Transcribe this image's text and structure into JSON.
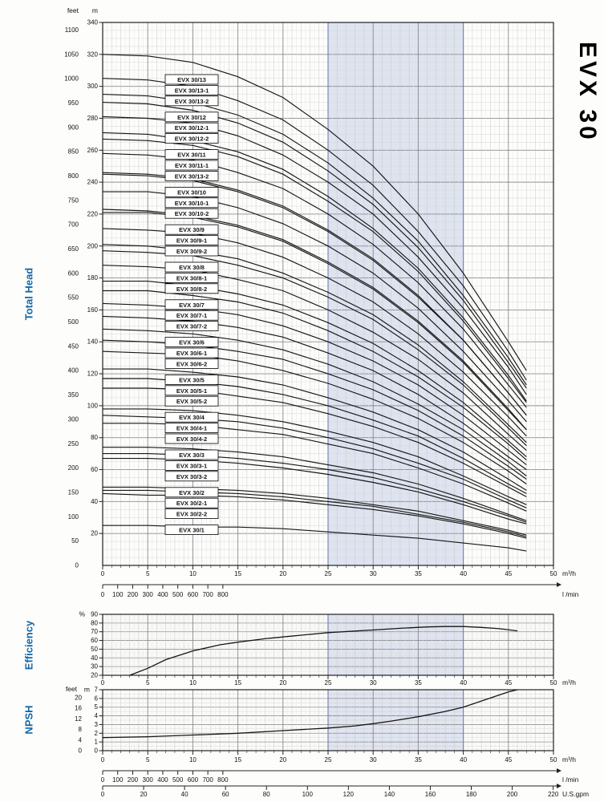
{
  "side_title": "EVX 30",
  "axis_titles": {
    "total_head": "Total Head",
    "efficiency": "Efficiency",
    "npsh": "NPSH"
  },
  "chart_data": [
    {
      "type": "line",
      "title": "Total Head vs flow - EVX 30 multistage pump family",
      "ylabel": "Total Head",
      "y_unit_left": "feet",
      "y_unit_right": "m",
      "ylim_m": [
        0,
        340
      ],
      "ylim_feet": [
        0,
        1115
      ],
      "y_ticks_feet": [
        0,
        50,
        100,
        150,
        200,
        250,
        300,
        350,
        400,
        450,
        500,
        550,
        600,
        650,
        700,
        750,
        800,
        850,
        900,
        950,
        1000,
        1050,
        1100
      ],
      "y_ticks_m": [
        20,
        40,
        60,
        80,
        100,
        120,
        140,
        160,
        180,
        200,
        220,
        240,
        260,
        280,
        300,
        320,
        340
      ],
      "xlim_m3h": [
        0,
        50
      ],
      "x_unit_rows": [
        {
          "unit": "m³/h",
          "ticks": [
            0,
            5,
            10,
            15,
            20,
            25,
            30,
            35,
            40,
            45,
            50
          ]
        },
        {
          "unit": "l /min",
          "ticks": [
            0,
            100,
            200,
            300,
            400,
            500,
            600,
            700,
            800
          ]
        }
      ],
      "duty_band_m3h": [
        25,
        40
      ],
      "x_m3h": [
        0,
        5,
        10,
        15,
        20,
        25,
        30,
        35,
        40,
        45,
        47
      ],
      "series": [
        {
          "label": "EVX 30/13",
          "values_m": [
            320,
            319,
            315,
            306,
            293,
            273,
            250,
            220,
            183,
            140,
            122
          ]
        },
        {
          "label": "EVX 30/13-1",
          "values_m": [
            305,
            304,
            300,
            291,
            279,
            260,
            238,
            209,
            175,
            134,
            116
          ]
        },
        {
          "label": "EVX 30/13-2",
          "values_m": [
            290,
            289,
            285,
            277,
            265,
            247,
            226,
            199,
            166,
            127,
            111
          ]
        },
        {
          "label": "EVX 30/12",
          "values_m": [
            295,
            294,
            290,
            282,
            270,
            252,
            230,
            203,
            169,
            130,
            113
          ]
        },
        {
          "label": "EVX 30/12-1",
          "values_m": [
            281,
            280,
            277,
            269,
            257,
            240,
            220,
            193,
            161,
            124,
            107
          ]
        },
        {
          "label": "EVX 30/12-2",
          "values_m": [
            267,
            266,
            263,
            256,
            245,
            228,
            209,
            184,
            153,
            117,
            102
          ]
        },
        {
          "label": "EVX 30/11",
          "values_m": [
            271,
            270,
            266,
            259,
            248,
            231,
            211,
            186,
            155,
            119,
            103
          ]
        },
        {
          "label": "EVX 30/11-1",
          "values_m": [
            258,
            257,
            254,
            246,
            236,
            220,
            201,
            177,
            148,
            113,
            99
          ]
        },
        {
          "label": "EVX 30/13-2",
          "values_m": [
            245,
            244,
            241,
            234,
            224,
            209,
            191,
            168,
            141,
            108,
            94
          ]
        },
        {
          "label": "EVX 30/10",
          "values_m": [
            246,
            245,
            242,
            235,
            225,
            210,
            192,
            169,
            141,
            108,
            94
          ]
        },
        {
          "label": "EVX 30/10-1",
          "values_m": [
            234,
            234,
            231,
            224,
            214,
            200,
            183,
            161,
            134,
            103,
            90
          ]
        },
        {
          "label": "EVX 30/10-2",
          "values_m": [
            223,
            222,
            219,
            213,
            204,
            190,
            174,
            153,
            128,
            98,
            85
          ]
        },
        {
          "label": "EVX 30/9",
          "values_m": [
            221,
            221,
            218,
            212,
            203,
            189,
            173,
            152,
            127,
            97,
            85
          ]
        },
        {
          "label": "EVX 30/9-1",
          "values_m": [
            211,
            210,
            208,
            202,
            193,
            180,
            165,
            145,
            121,
            93,
            81
          ]
        },
        {
          "label": "EVX 30/9-2",
          "values_m": [
            201,
            200,
            197,
            192,
            183,
            171,
            157,
            138,
            115,
            88,
            77
          ]
        },
        {
          "label": "EVX 30/8",
          "values_m": [
            197,
            196,
            194,
            188,
            180,
            168,
            154,
            135,
            113,
            86,
            75
          ]
        },
        {
          "label": "EVX 30/8-1",
          "values_m": [
            188,
            187,
            185,
            179,
            172,
            160,
            146,
            129,
            108,
            82,
            72
          ]
        },
        {
          "label": "EVX 30/8-2",
          "values_m": [
            178,
            178,
            175,
            170,
            163,
            152,
            139,
            122,
            102,
            78,
            68
          ]
        },
        {
          "label": "EVX 30/7",
          "values_m": [
            172,
            172,
            169,
            165,
            158,
            147,
            134,
            118,
            99,
            76,
            66
          ]
        },
        {
          "label": "EVX 30/7-1",
          "values_m": [
            164,
            163,
            161,
            157,
            150,
            140,
            128,
            113,
            94,
            72,
            63
          ]
        },
        {
          "label": "EVX 30/7-2",
          "values_m": [
            156,
            155,
            153,
            149,
            143,
            133,
            122,
            107,
            89,
            68,
            60
          ]
        },
        {
          "label": "EVX 30/6",
          "values_m": [
            148,
            147,
            145,
            141,
            135,
            126,
            115,
            101,
            85,
            65,
            56
          ]
        },
        {
          "label": "EVX 30/6-1",
          "values_m": [
            141,
            140,
            138,
            134,
            129,
            120,
            110,
            97,
            81,
            62,
            54
          ]
        },
        {
          "label": "EVX 30/6-2",
          "values_m": [
            134,
            133,
            132,
            128,
            122,
            114,
            104,
            92,
            77,
            59,
            51
          ]
        },
        {
          "label": "EVX 30/5",
          "values_m": [
            123,
            123,
            121,
            118,
            113,
            105,
            96,
            85,
            71,
            54,
            47
          ]
        },
        {
          "label": "EVX 30/5-1",
          "values_m": [
            117,
            117,
            115,
            112,
            107,
            100,
            91,
            81,
            67,
            51,
            45
          ]
        },
        {
          "label": "EVX 30/5-2",
          "values_m": [
            111,
            111,
            110,
            106,
            102,
            95,
            87,
            77,
            64,
            49,
            43
          ]
        },
        {
          "label": "EVX 30/4",
          "values_m": [
            98,
            98,
            97,
            94,
            90,
            84,
            77,
            68,
            56,
            43,
            38
          ]
        },
        {
          "label": "EVX 30/4-1",
          "values_m": [
            94,
            93,
            92,
            90,
            86,
            80,
            73,
            64,
            54,
            41,
            36
          ]
        },
        {
          "label": "EVX 30/4-2",
          "values_m": [
            89,
            89,
            88,
            85,
            82,
            76,
            70,
            61,
            51,
            39,
            34
          ]
        },
        {
          "label": "EVX 30/3",
          "values_m": [
            74,
            74,
            73,
            71,
            68,
            63,
            58,
            51,
            42,
            32,
            28
          ]
        },
        {
          "label": "EVX 30/3-1",
          "values_m": [
            70,
            70,
            69,
            67,
            64,
            60,
            55,
            48,
            40,
            31,
            27
          ]
        },
        {
          "label": "EVX 30/3-2",
          "values_m": [
            67,
            67,
            66,
            64,
            61,
            57,
            52,
            46,
            38,
            29,
            26
          ]
        },
        {
          "label": "EVX 30/2",
          "values_m": [
            49,
            49,
            48,
            47,
            45,
            42,
            38,
            34,
            28,
            22,
            19
          ]
        },
        {
          "label": "EVX 30/2-1",
          "values_m": [
            47,
            47,
            46,
            45,
            43,
            40,
            37,
            32,
            27,
            21,
            18
          ]
        },
        {
          "label": "EVX 30/2-2",
          "values_m": [
            45,
            44,
            44,
            43,
            41,
            38,
            35,
            31,
            26,
            20,
            17
          ]
        },
        {
          "label": "EVX 30/1",
          "values_m": [
            25,
            25,
            24,
            24,
            23,
            21,
            19,
            17,
            14,
            11,
            9
          ]
        }
      ]
    },
    {
      "type": "line",
      "title": "Efficiency vs flow",
      "ylabel": "Efficiency",
      "y_unit": "%",
      "ylim": [
        20,
        90
      ],
      "y_ticks": [
        20,
        30,
        40,
        50,
        60,
        70,
        80,
        90
      ],
      "x_unit": "m³/h",
      "x_ticks_m3h": [
        0,
        5,
        10,
        15,
        20,
        25,
        30,
        35,
        40,
        45,
        50
      ],
      "duty_band_m3h": [
        25,
        40
      ],
      "points": [
        [
          3,
          20
        ],
        [
          5,
          28
        ],
        [
          7,
          38
        ],
        [
          10,
          48
        ],
        [
          13,
          55
        ],
        [
          15,
          58
        ],
        [
          18,
          62
        ],
        [
          20,
          64
        ],
        [
          25,
          69
        ],
        [
          30,
          72
        ],
        [
          33,
          74
        ],
        [
          36,
          75.5
        ],
        [
          38,
          76
        ],
        [
          40,
          76
        ],
        [
          42,
          75
        ],
        [
          44,
          73.5
        ],
        [
          46,
          71
        ]
      ]
    },
    {
      "type": "line",
      "title": "NPSH vs flow",
      "ylabel": "NPSH",
      "y_unit_left": "feet",
      "y_unit_right": "m",
      "ylim_m": [
        0,
        7
      ],
      "y_ticks_feet": [
        0,
        4,
        8,
        12,
        16,
        20
      ],
      "y_ticks_m": [
        0,
        1,
        2,
        3,
        4,
        5,
        6,
        7
      ],
      "x_unit_rows": [
        {
          "unit": "m³/h",
          "ticks": [
            0,
            5,
            10,
            15,
            20,
            25,
            30,
            35,
            40,
            45,
            50
          ]
        },
        {
          "unit": "l /min",
          "ticks": [
            0,
            100,
            200,
            300,
            400,
            500,
            600,
            700,
            800
          ]
        },
        {
          "unit": "U.S.gpm",
          "ticks": [
            0,
            20,
            40,
            60,
            80,
            100,
            120,
            140,
            160,
            180,
            200,
            220
          ]
        }
      ],
      "duty_band_m3h": [
        25,
        40
      ],
      "points_m": [
        [
          0,
          1.5
        ],
        [
          5,
          1.6
        ],
        [
          10,
          1.8
        ],
        [
          15,
          2.0
        ],
        [
          20,
          2.3
        ],
        [
          25,
          2.6
        ],
        [
          28,
          2.85
        ],
        [
          30,
          3.1
        ],
        [
          32,
          3.4
        ],
        [
          35,
          3.9
        ],
        [
          38,
          4.5
        ],
        [
          40,
          5.0
        ],
        [
          42,
          5.7
        ],
        [
          44,
          6.4
        ],
        [
          45,
          6.75
        ],
        [
          46,
          7.0
        ]
      ]
    }
  ]
}
